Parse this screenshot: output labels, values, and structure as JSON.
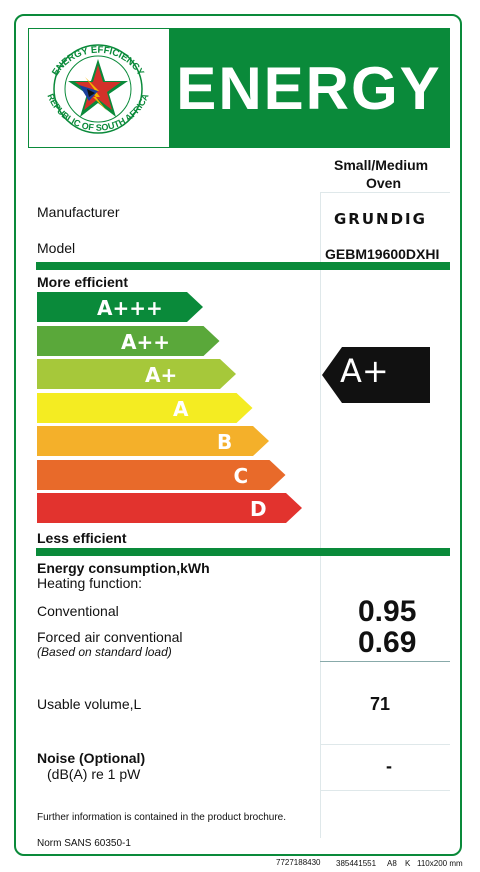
{
  "header": {
    "seal_text_top": "ENERGY EFFICIENCY",
    "seal_text_bottom": "REPUBLIC OF SOUTH AFRICA",
    "title": "ENERGY"
  },
  "appliance": {
    "type_line1": "Small/Medium",
    "type_line2": "Oven",
    "manufacturer_label": "Manufacturer",
    "manufacturer_value": "GRUNDIG",
    "model_label": "Model",
    "model_value": "GEBM19600DXHI"
  },
  "scale": {
    "more_label": "More efficient",
    "less_label": "Less efficient",
    "classes": [
      {
        "label": "A+++",
        "color": "#0a8a3a"
      },
      {
        "label": "A++",
        "color": "#5aa83a"
      },
      {
        "label": "A+",
        "color": "#a6c83a"
      },
      {
        "label": "A",
        "color": "#f4ec22"
      },
      {
        "label": "B",
        "color": "#f4b02a"
      },
      {
        "label": "C",
        "color": "#e86a2a"
      },
      {
        "label": "D",
        "color": "#e2332e"
      }
    ],
    "rating": "A+",
    "rating_color": "#111111"
  },
  "consumption": {
    "title": "Energy consumption,kWh",
    "heating_label": "Heating function:",
    "conventional_label": "Conventional",
    "conventional_value": "0.95",
    "forced_label": "Forced air conventional",
    "forced_note": "(Based on standard load)",
    "forced_value": "0.69"
  },
  "volume": {
    "label": "Usable volume,L",
    "value": "71"
  },
  "noise": {
    "label": "Noise (Optional)",
    "unit": "(dB(A) re 1 pW",
    "value": "-"
  },
  "footer": {
    "info": "Further information is contained in the product brochure.",
    "norm": "Norm SANS 60350-1",
    "code1": "7727188430",
    "code2": "385441551",
    "code3": "A8",
    "code4": "K",
    "code5": "110x200 mm"
  }
}
